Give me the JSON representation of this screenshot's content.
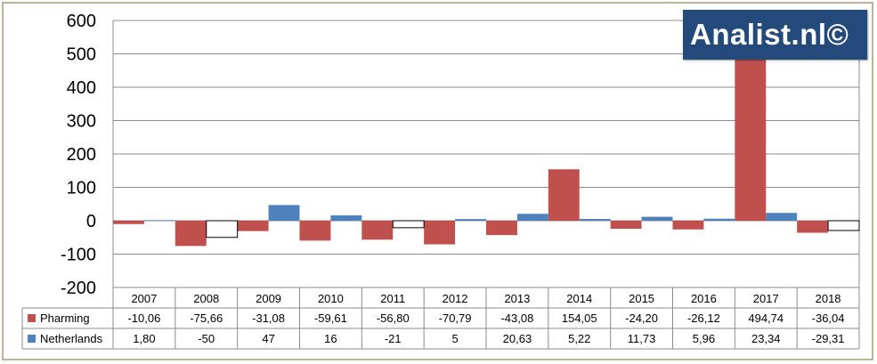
{
  "watermark": "Analist.nl©",
  "chart_data": {
    "type": "bar",
    "categories": [
      "2007",
      "2008",
      "2009",
      "2010",
      "2011",
      "2012",
      "2013",
      "2014",
      "2015",
      "2016",
      "2017",
      "2018"
    ],
    "series": [
      {
        "name": "Pharming",
        "color": "#c0504d",
        "values": [
          -10.06,
          -75.66,
          -31.08,
          -59.61,
          -56.8,
          -70.79,
          -43.08,
          154.05,
          -24.2,
          -26.12,
          494.74,
          -36.04
        ],
        "labels": [
          "-10,06",
          "-75,66",
          "-31,08",
          "-59,61",
          "-56,80",
          "-70,79",
          "-43,08",
          "154,05",
          "-24,20",
          "-26,12",
          "494,74",
          "-36,04"
        ]
      },
      {
        "name": "Netherlands",
        "color": "#4f81bd",
        "negative_fill": "#ffffff",
        "values": [
          1.8,
          -50,
          47,
          16,
          -21,
          5,
          20.63,
          5.22,
          11.73,
          5.96,
          23.34,
          -29.31
        ],
        "labels": [
          "1,80",
          "-50",
          "47",
          "16",
          "-21",
          "5",
          "20,63",
          "5,22",
          "11,73",
          "5,96",
          "23,34",
          "-29,31"
        ]
      }
    ],
    "yticks": [
      "600",
      "500",
      "400",
      "300",
      "200",
      "100",
      "0",
      "-100",
      "-200"
    ],
    "ytick_values": [
      600,
      500,
      400,
      300,
      200,
      100,
      0,
      -100,
      -200
    ],
    "ylim": [
      -200,
      600
    ],
    "grid": true,
    "legend": "data-table"
  }
}
